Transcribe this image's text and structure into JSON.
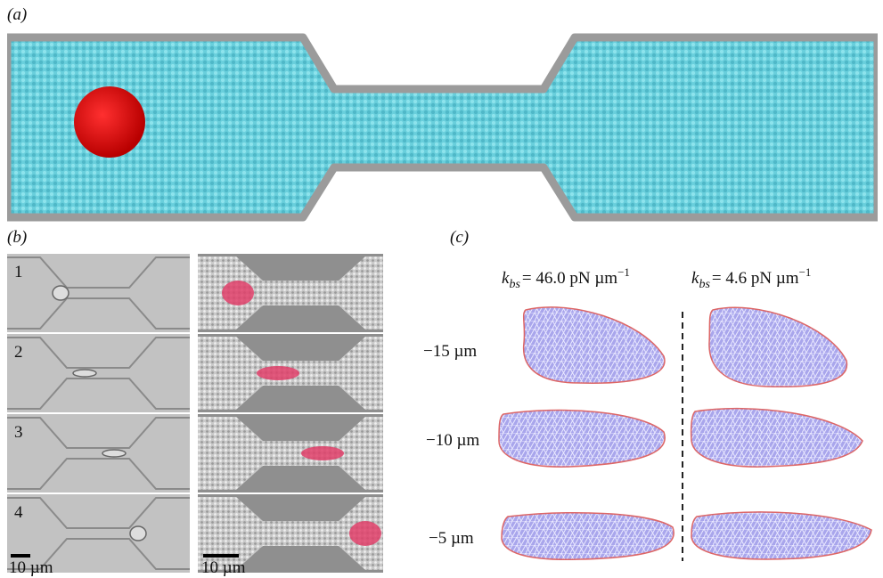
{
  "panels": {
    "a": {
      "label": "(a)"
    },
    "b": {
      "label": "(b)",
      "rows": [
        "1",
        "2",
        "3",
        "4"
      ],
      "scale_bars": [
        "10 µm",
        "10 µm"
      ]
    },
    "c": {
      "label": "(c)",
      "columns": [
        {
          "symbol": "k",
          "subscript": "bs",
          "value": "= 46.0 pN µm",
          "exponent": "−1"
        },
        {
          "symbol": "k",
          "subscript": "bs",
          "value": "= 4.6 pN µm",
          "exponent": "−1"
        }
      ],
      "rows": [
        "−15 µm",
        "−10 µm",
        "−5 µm"
      ]
    }
  }
}
